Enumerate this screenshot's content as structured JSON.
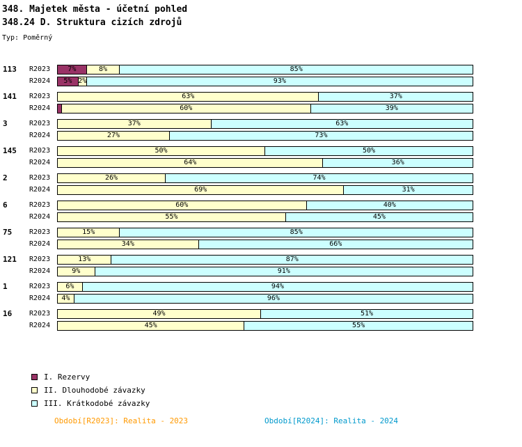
{
  "header": {
    "title_line1": "348. Majetek města - účetní pohled",
    "title_line2": "348.24 D. Struktura cizích zdrojů",
    "type_label": "Typ: Poměrný"
  },
  "colors": {
    "rezervy": "#993366",
    "dlouhodobe": "#FFFFCC",
    "kratkodobe": "#CCFFFF",
    "border": "#000000",
    "footer_2023": "#FF9900",
    "footer_2024": "#0099CC"
  },
  "chart_data": {
    "type": "bar",
    "orientation": "horizontal",
    "stacked": true,
    "unit": "%",
    "xlim": [
      0,
      100
    ],
    "series_names": [
      "I. Rezervy",
      "II. Dlouhodobé závazky",
      "III. Krátkodobé závazky"
    ],
    "groups": [
      {
        "id": "113",
        "rows": [
          {
            "label": "R2023",
            "values": [
              7,
              8,
              85
            ],
            "labels": [
              "7%",
              "8%",
              "85%"
            ]
          },
          {
            "label": "R2024",
            "values": [
              5,
              2,
              93
            ],
            "labels": [
              "5%",
              "2%",
              "93%"
            ]
          }
        ]
      },
      {
        "id": "141",
        "rows": [
          {
            "label": "R2023",
            "values": [
              0,
              63,
              37
            ],
            "labels": [
              "",
              "63%",
              "37%"
            ]
          },
          {
            "label": "R2024",
            "values": [
              1,
              60,
              39
            ],
            "labels": [
              "",
              "60%",
              "39%"
            ]
          }
        ]
      },
      {
        "id": "3",
        "rows": [
          {
            "label": "R2023",
            "values": [
              0,
              37,
              63
            ],
            "labels": [
              "",
              "37%",
              "63%"
            ]
          },
          {
            "label": "R2024",
            "values": [
              0,
              27,
              73
            ],
            "labels": [
              "",
              "27%",
              "73%"
            ]
          }
        ]
      },
      {
        "id": "145",
        "rows": [
          {
            "label": "R2023",
            "values": [
              0,
              50,
              50
            ],
            "labels": [
              "",
              "50%",
              "50%"
            ]
          },
          {
            "label": "R2024",
            "values": [
              0,
              64,
              36
            ],
            "labels": [
              "",
              "64%",
              "36%"
            ]
          }
        ]
      },
      {
        "id": "2",
        "rows": [
          {
            "label": "R2023",
            "values": [
              0,
              26,
              74
            ],
            "labels": [
              "",
              "26%",
              "74%"
            ]
          },
          {
            "label": "R2024",
            "values": [
              0,
              69,
              31
            ],
            "labels": [
              "",
              "69%",
              "31%"
            ]
          }
        ]
      },
      {
        "id": "6",
        "rows": [
          {
            "label": "R2023",
            "values": [
              0,
              60,
              40
            ],
            "labels": [
              "",
              "60%",
              "40%"
            ]
          },
          {
            "label": "R2024",
            "values": [
              0,
              55,
              45
            ],
            "labels": [
              "",
              "55%",
              "45%"
            ]
          }
        ]
      },
      {
        "id": "75",
        "rows": [
          {
            "label": "R2023",
            "values": [
              0,
              15,
              85
            ],
            "labels": [
              "",
              "15%",
              "85%"
            ]
          },
          {
            "label": "R2024",
            "values": [
              0,
              34,
              66
            ],
            "labels": [
              "",
              "34%",
              "66%"
            ]
          }
        ]
      },
      {
        "id": "121",
        "rows": [
          {
            "label": "R2023",
            "values": [
              0,
              13,
              87
            ],
            "labels": [
              "",
              "13%",
              "87%"
            ]
          },
          {
            "label": "R2024",
            "values": [
              0,
              9,
              91
            ],
            "labels": [
              "",
              "9%",
              "91%"
            ]
          }
        ]
      },
      {
        "id": "1",
        "rows": [
          {
            "label": "R2023",
            "values": [
              0,
              6,
              94
            ],
            "labels": [
              "",
              "6%",
              "94%"
            ]
          },
          {
            "label": "R2024",
            "values": [
              0,
              4,
              96
            ],
            "labels": [
              "",
              "4%",
              "96%"
            ]
          }
        ]
      },
      {
        "id": "16",
        "rows": [
          {
            "label": "R2023",
            "values": [
              0,
              49,
              51
            ],
            "labels": [
              "",
              "49%",
              "51%"
            ]
          },
          {
            "label": "R2024",
            "values": [
              0,
              45,
              55
            ],
            "labels": [
              "",
              "45%",
              "55%"
            ]
          }
        ]
      }
    ]
  },
  "legend": {
    "items": [
      {
        "label": "I. Rezervy",
        "color": "#993366"
      },
      {
        "label": "II. Dlouhodobé závazky",
        "color": "#FFFFCC"
      },
      {
        "label": "III. Krátkodobé závazky",
        "color": "#CCFFFF"
      }
    ]
  },
  "footer": {
    "period_2023": "Období[R2023]: Realita - 2023",
    "period_2024": "Období[R2024]: Realita - 2024"
  }
}
